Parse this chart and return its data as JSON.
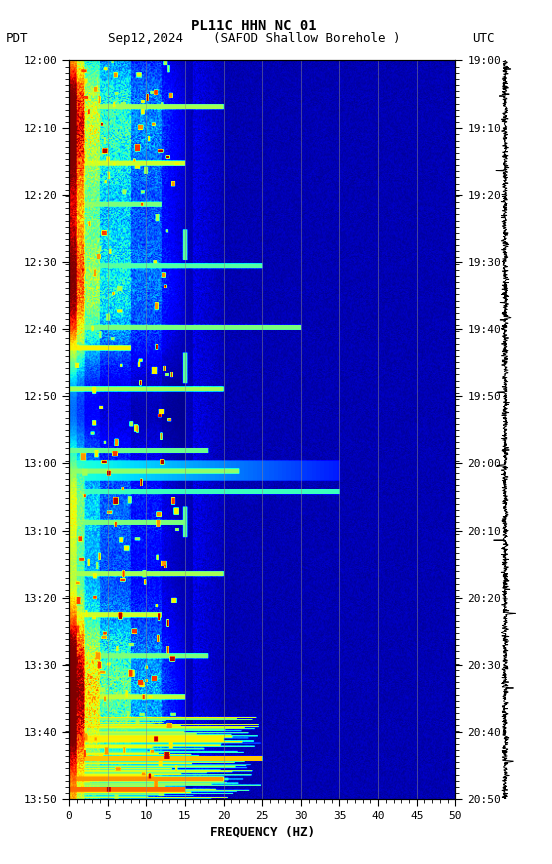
{
  "title_line1": "PL11C HHN NC 01",
  "title_line2": "Sep12,2024    (SAFOD Shallow Borehole )",
  "left_label": "PDT",
  "right_label": "UTC",
  "xlabel": "FREQUENCY (HZ)",
  "freq_min": 0,
  "freq_max": 50,
  "freq_ticks": [
    0,
    5,
    10,
    15,
    20,
    25,
    30,
    35,
    40,
    45,
    50
  ],
  "time_left_labels": [
    "12:00",
    "12:10",
    "12:20",
    "12:30",
    "12:40",
    "12:50",
    "13:00",
    "13:10",
    "13:20",
    "13:30",
    "13:40",
    "13:50"
  ],
  "time_right_labels": [
    "19:00",
    "19:10",
    "19:20",
    "19:30",
    "19:40",
    "19:50",
    "20:00",
    "20:10",
    "20:20",
    "20:30",
    "20:40",
    "20:50"
  ],
  "n_time_steps": 720,
  "n_freq_bins": 500,
  "background_color": "#ffffff",
  "figsize": [
    5.52,
    8.64
  ],
  "dpi": 100,
  "colormap": "jet",
  "vmin": 0,
  "vmax": 100
}
